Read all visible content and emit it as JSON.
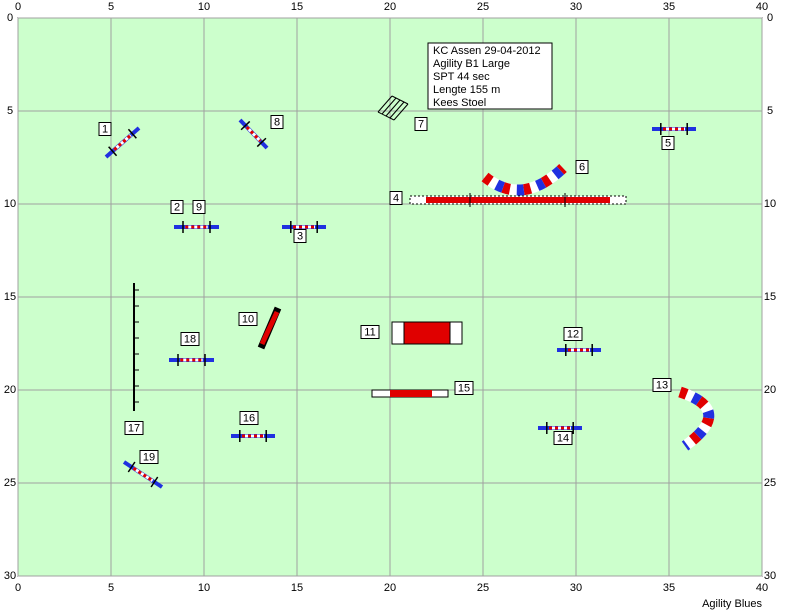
{
  "axes": {
    "x_ticks": [
      0,
      5,
      10,
      15,
      20,
      25,
      30,
      35,
      40
    ],
    "y_ticks": [
      0,
      5,
      10,
      15,
      20,
      25,
      30
    ]
  },
  "info": [
    "KC Assen 29-04-2012",
    "Agility B1 Large",
    "SPT 44 sec",
    "Lengte 155 m",
    "Kees Stoel"
  ],
  "obstacle_numbers": [
    "1",
    "2",
    "3",
    "4",
    "5",
    "6",
    "7",
    "8",
    "9",
    "10",
    "11",
    "12",
    "13",
    "14",
    "15",
    "16",
    "17",
    "18",
    "19"
  ],
  "footer": "Agility Blues"
}
